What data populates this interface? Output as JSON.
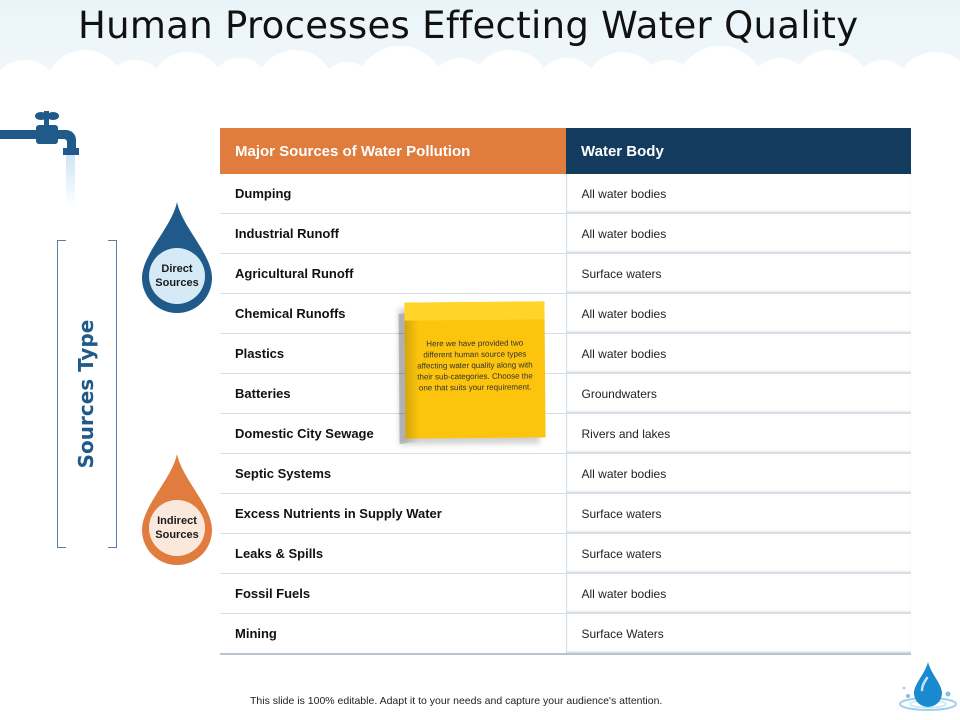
{
  "title": "Human Processes Effecting Water Quality",
  "side_label": "Sources Type",
  "drops": {
    "direct": {
      "line1": "Direct",
      "line2": "Sources",
      "color": "#1f5a8a"
    },
    "indirect": {
      "line1": "Indirect",
      "line2": "Sources",
      "color": "#e07c3d"
    }
  },
  "table": {
    "headers": [
      "Major Sources of Water Pollution",
      "Water Body"
    ],
    "rows": [
      {
        "source": "Dumping",
        "water_body": "All water bodies"
      },
      {
        "source": "Industrial Runoff",
        "water_body": "All water bodies"
      },
      {
        "source": "Agricultural Runoff",
        "water_body": "Surface waters"
      },
      {
        "source": "Chemical Runoffs",
        "water_body": "All water bodies"
      },
      {
        "source": "Plastics",
        "water_body": "All water bodies"
      },
      {
        "source": "Batteries",
        "water_body": "Groundwaters"
      },
      {
        "source": "Domestic City Sewage",
        "water_body": "Rivers and lakes"
      },
      {
        "source": "Septic Systems",
        "water_body": "All water bodies"
      },
      {
        "source": "Excess Nutrients in Supply Water",
        "water_body": "Surface waters"
      },
      {
        "source": "Leaks & Spills",
        "water_body": "Surface waters"
      },
      {
        "source": "Fossil Fuels",
        "water_body": "All water bodies"
      },
      {
        "source": "Mining",
        "water_body": "Surface Waters"
      }
    ]
  },
  "sticky_note": {
    "text": "Here we have provided two different human source types affecting water quality along with their sub-categories. Choose the one that suits your requirement."
  },
  "footer": "This slide is 100% editable. Adapt it to your needs and capture your audience's attention.",
  "colors": {
    "orange_header": "#e07c3d",
    "navy_header": "#123b5e",
    "sticky": "#fcc40c",
    "accent_blue": "#1f5a8a"
  },
  "icons": {
    "faucet": "faucet-icon",
    "logo": "water-drop-icon"
  }
}
